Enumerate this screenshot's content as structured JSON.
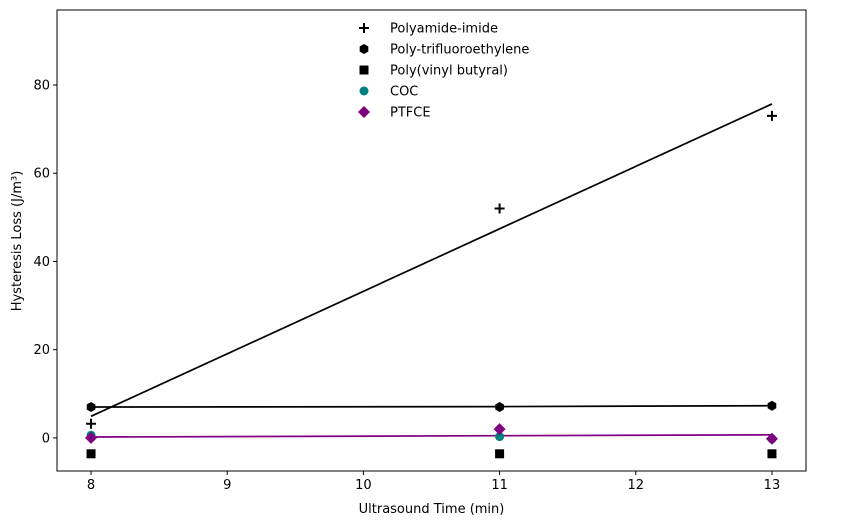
{
  "chart_data": {
    "type": "scatter",
    "title": "",
    "xlabel": "Ultrasound Time (min)",
    "ylabel": "Hysteresis Loss (J/m³)",
    "xlim": [
      7.75,
      13.25
    ],
    "ylim": [
      -7.5,
      97
    ],
    "xticks": [
      8,
      9,
      10,
      11,
      12,
      13
    ],
    "yticks": [
      0,
      20,
      40,
      60,
      80
    ],
    "grid": false,
    "legend_position": "top-center",
    "x": [
      8,
      11,
      13
    ],
    "series": [
      {
        "name": "Polyamide-imide",
        "marker": "plus",
        "color": "#000000",
        "values": [
          3.2,
          52.0,
          73.0
        ],
        "fit": [
          4.9,
          47.4,
          75.7
        ],
        "fit_color": "#000000"
      },
      {
        "name": "Poly-trifluoroethylene",
        "marker": "hexagon",
        "color": "#000000",
        "values": [
          7.0,
          7.0,
          7.3
        ],
        "fit": [
          7.0,
          7.1,
          7.3
        ],
        "fit_color": "#000000"
      },
      {
        "name": "Poly(vinyl butyral)",
        "marker": "square",
        "color": "#000000",
        "values": [
          -3.6,
          -3.6,
          -3.6
        ]
      },
      {
        "name": "COC",
        "marker": "circle",
        "color": "#008080",
        "values": [
          0.6,
          0.3,
          -0.2
        ]
      },
      {
        "name": "PTFCE",
        "marker": "diamond",
        "color": "#800080",
        "values": [
          0.0,
          2.0,
          -0.2
        ],
        "fit": [
          0.2,
          0.5,
          0.7
        ],
        "fit_color": "#800080"
      }
    ]
  }
}
